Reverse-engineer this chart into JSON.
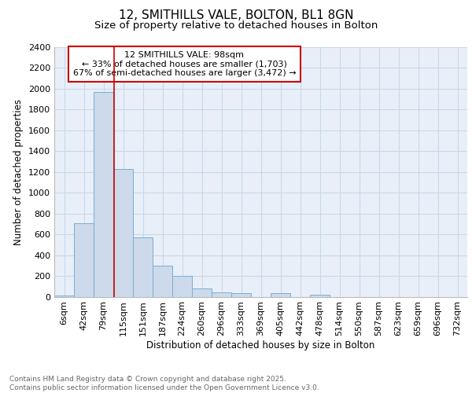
{
  "title1": "12, SMITHILLS VALE, BOLTON, BL1 8GN",
  "title2": "Size of property relative to detached houses in Bolton",
  "xlabel": "Distribution of detached houses by size in Bolton",
  "ylabel": "Number of detached properties",
  "categories": [
    "6sqm",
    "42sqm",
    "79sqm",
    "115sqm",
    "151sqm",
    "187sqm",
    "224sqm",
    "260sqm",
    "296sqm",
    "333sqm",
    "369sqm",
    "405sqm",
    "442sqm",
    "478sqm",
    "514sqm",
    "550sqm",
    "587sqm",
    "623sqm",
    "659sqm",
    "696sqm",
    "732sqm"
  ],
  "values": [
    15,
    710,
    1970,
    1230,
    570,
    300,
    200,
    80,
    45,
    35,
    0,
    32,
    0,
    18,
    0,
    0,
    0,
    0,
    0,
    0,
    0
  ],
  "bar_color": "#ccdaeb",
  "bar_edge_color": "#7aadd4",
  "bar_edge_width": 0.7,
  "ylim": [
    0,
    2400
  ],
  "yticks": [
    0,
    200,
    400,
    600,
    800,
    1000,
    1200,
    1400,
    1600,
    1800,
    2000,
    2200,
    2400
  ],
  "grid_color": "#c8d8e8",
  "bg_color": "#e8eff8",
  "annotation_text": "12 SMITHILLS VALE: 98sqm\n← 33% of detached houses are smaller (1,703)\n67% of semi-detached houses are larger (3,472) →",
  "annotation_box_color": "#cc0000",
  "footer1": "Contains HM Land Registry data © Crown copyright and database right 2025.",
  "footer2": "Contains public sector information licensed under the Open Government Licence v3.0.",
  "title_fontsize": 11,
  "subtitle_fontsize": 9.5,
  "axis_label_fontsize": 8.5,
  "tick_fontsize": 8,
  "annotation_fontsize": 8,
  "footer_fontsize": 6.5
}
